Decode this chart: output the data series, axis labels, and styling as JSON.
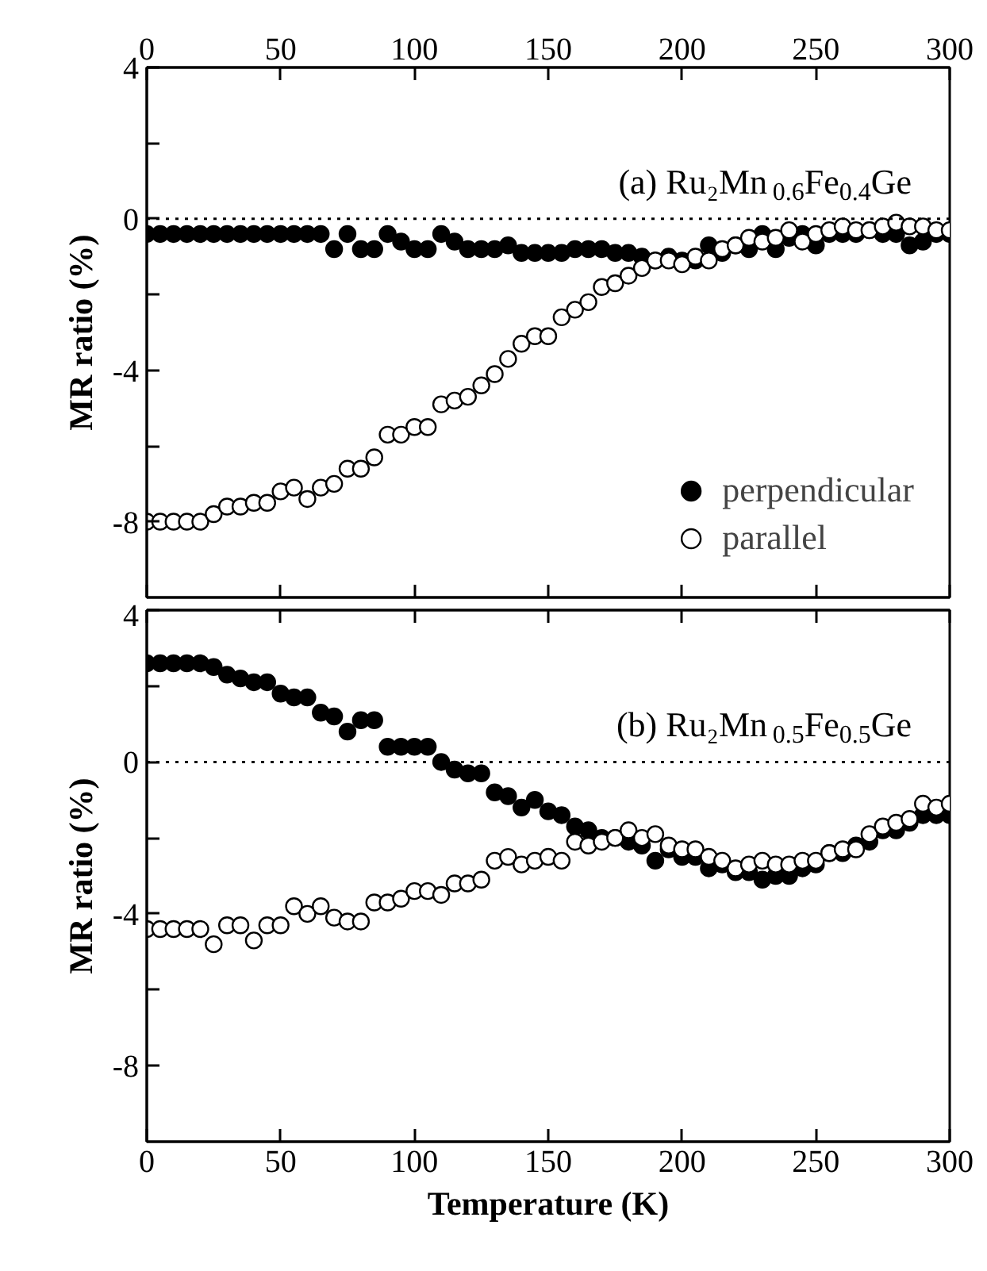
{
  "chart_data": [
    {
      "type": "scatter",
      "annotations": [
        "(a) Ru₂Mn$_{0.6}$Fe$_{0.4}$Ge"
      ],
      "ylabel": "MR ratio (%)",
      "xlim": [
        0,
        300
      ],
      "xticks": [
        0,
        50,
        100,
        150,
        200,
        250,
        300
      ],
      "x2lim": [
        0,
        300
      ],
      "x2ticks": [
        0,
        50,
        100,
        150,
        200,
        250,
        300
      ],
      "tick_labels": "y",
      "ylim": [
        -10,
        4
      ],
      "yticks": [
        4,
        {
          "value": 2,
          "label": null
        },
        0,
        {
          "value": -2,
          "label": null
        },
        -4,
        {
          "value": -6,
          "label": null
        },
        -8
      ],
      "marker": "circle",
      "legend": "bottom right",
      "ref_lines": [
        {
          "axis": "y",
          "value": 0,
          "line_style": "dotted",
          "color": "#000000"
        }
      ],
      "x": [
        0,
        5,
        10,
        15,
        20,
        25,
        30,
        35,
        40,
        45,
        50,
        55,
        60,
        65,
        70,
        75,
        80,
        85,
        90,
        95,
        100,
        105,
        110,
        115,
        120,
        125,
        130,
        135,
        140,
        145,
        150,
        155,
        160,
        165,
        170,
        175,
        180,
        185,
        190,
        195,
        200,
        205,
        210,
        215,
        220,
        225,
        230,
        235,
        240,
        245,
        250,
        255,
        260,
        265,
        270,
        275,
        280,
        285,
        290,
        295,
        300
      ],
      "series": [
        {
          "name": "perpendicular",
          "color": "#000000",
          "values": [
            -0.4,
            -0.4,
            -0.4,
            -0.4,
            -0.4,
            -0.4,
            -0.4,
            -0.4,
            -0.4,
            -0.4,
            -0.4,
            -0.4,
            -0.4,
            -0.4,
            -0.8,
            -0.4,
            -0.8,
            -0.8,
            -0.4,
            -0.6,
            -0.8,
            -0.8,
            -0.4,
            -0.6,
            -0.8,
            -0.8,
            -0.8,
            -0.7,
            -0.9,
            -0.9,
            -0.9,
            -0.9,
            -0.8,
            -0.8,
            -0.8,
            -0.9,
            -0.9,
            -1.0,
            -1.1,
            -1.0,
            -1.1,
            -1.1,
            -0.7,
            -0.9,
            -0.7,
            -0.8,
            -0.4,
            -0.8,
            -0.5,
            -0.4,
            -0.7,
            -0.4,
            -0.4,
            -0.4,
            -0.3,
            -0.4,
            -0.4,
            -0.7,
            -0.6,
            -0.4,
            -0.4
          ]
        },
        {
          "name": "parallel",
          "color": "#ffffff",
          "values": [
            -8.0,
            -8.0,
            -8.0,
            -8.0,
            -8.0,
            -7.8,
            -7.6,
            -7.6,
            -7.5,
            -7.5,
            -7.2,
            -7.1,
            -7.4,
            -7.1,
            -7.0,
            -6.6,
            -6.6,
            -6.3,
            -5.7,
            -5.7,
            -5.5,
            -5.5,
            -4.9,
            -4.8,
            -4.7,
            -4.4,
            -4.1,
            -3.7,
            -3.3,
            -3.1,
            -3.1,
            -2.6,
            -2.4,
            -2.2,
            -1.8,
            -1.7,
            -1.5,
            -1.3,
            -1.1,
            -1.1,
            -1.2,
            -1.0,
            -1.1,
            -0.8,
            -0.7,
            -0.5,
            -0.6,
            -0.5,
            -0.3,
            -0.6,
            -0.4,
            -0.3,
            -0.2,
            -0.3,
            -0.3,
            -0.2,
            -0.1,
            -0.2,
            -0.2,
            -0.3,
            -0.3
          ]
        }
      ]
    },
    {
      "type": "scatter",
      "annotations": [
        "(b) Ru₂Mn$_{0.5}$Fe$_{0.5}$Ge"
      ],
      "ylabel": "MR ratio (%)",
      "xlabel": "Temperature (K)",
      "xlim": [
        0,
        300
      ],
      "xticks": [
        0,
        50,
        100,
        150,
        200,
        250,
        300
      ],
      "ylim": [
        -10,
        4
      ],
      "yticks": [
        4,
        {
          "value": 2,
          "label": null
        },
        0,
        {
          "value": -2,
          "label": null
        },
        -4,
        {
          "value": -6,
          "label": null
        },
        -8
      ],
      "marker": "circle",
      "ref_lines": [
        {
          "axis": "y",
          "value": 0,
          "line_style": "dotted",
          "color": "#000000"
        }
      ],
      "x": [
        0,
        5,
        10,
        15,
        20,
        25,
        30,
        35,
        40,
        45,
        50,
        55,
        60,
        65,
        70,
        75,
        80,
        85,
        90,
        95,
        100,
        105,
        110,
        115,
        120,
        125,
        130,
        135,
        140,
        145,
        150,
        155,
        160,
        165,
        170,
        175,
        180,
        185,
        190,
        195,
        200,
        205,
        210,
        215,
        220,
        225,
        230,
        235,
        240,
        245,
        250,
        255,
        260,
        265,
        270,
        275,
        280,
        285,
        290,
        295,
        300
      ],
      "series": [
        {
          "color": "#000000",
          "values": [
            2.6,
            2.6,
            2.6,
            2.6,
            2.6,
            2.5,
            2.3,
            2.2,
            2.1,
            2.1,
            1.8,
            1.7,
            1.7,
            1.3,
            1.2,
            0.8,
            1.1,
            1.1,
            0.4,
            0.4,
            0.4,
            0.4,
            0.0,
            -0.2,
            -0.3,
            -0.3,
            -0.8,
            -0.9,
            -1.2,
            -1.0,
            -1.3,
            -1.4,
            -1.7,
            -1.8,
            -2.0,
            -2.0,
            -2.1,
            -2.2,
            -2.6,
            -2.3,
            -2.5,
            -2.5,
            -2.8,
            -2.7,
            -2.9,
            -2.9,
            -3.1,
            -3.0,
            -3.0,
            -2.8,
            -2.7,
            -2.4,
            -2.4,
            -2.2,
            -2.1,
            -1.8,
            -1.8,
            -1.6,
            -1.4,
            -1.4,
            -1.4
          ]
        },
        {
          "color": "#ffffff",
          "values": [
            -4.4,
            -4.4,
            -4.4,
            -4.4,
            -4.4,
            -4.8,
            -4.3,
            -4.3,
            -4.7,
            -4.3,
            -4.3,
            -3.8,
            -4.0,
            -3.8,
            -4.1,
            -4.2,
            -4.2,
            -3.7,
            -3.7,
            -3.6,
            -3.4,
            -3.4,
            -3.5,
            -3.2,
            -3.2,
            -3.1,
            -2.6,
            -2.5,
            -2.7,
            -2.6,
            -2.5,
            -2.6,
            -2.1,
            -2.2,
            -2.1,
            -2.0,
            -1.8,
            -2.0,
            -1.9,
            -2.2,
            -2.3,
            -2.3,
            -2.5,
            -2.6,
            -2.8,
            -2.7,
            -2.6,
            -2.7,
            -2.7,
            -2.6,
            -2.6,
            -2.4,
            -2.3,
            -2.3,
            -1.9,
            -1.7,
            -1.6,
            -1.5,
            -1.1,
            -1.2,
            -1.1
          ]
        }
      ]
    }
  ]
}
